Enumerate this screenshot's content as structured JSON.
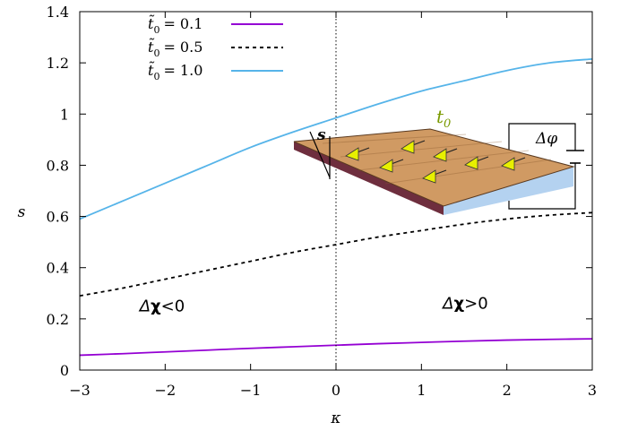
{
  "chart_data": {
    "type": "line",
    "title": "",
    "xlabel": "κ",
    "ylabel": "s",
    "xlim": [
      -3,
      3
    ],
    "ylim": [
      0,
      1.4
    ],
    "xticks": [
      -3,
      -2,
      -1,
      0,
      1,
      2,
      3
    ],
    "xtick_labels": [
      "−3",
      "−2",
      "−1",
      "0",
      "1",
      "2",
      "3"
    ],
    "yticks": [
      0,
      0.2,
      0.4,
      0.6,
      0.8,
      1,
      1.2,
      1.4
    ],
    "ytick_labels": [
      "0",
      "0.2",
      "0.4",
      "0.6",
      "0.8",
      "1",
      "1.2",
      "1.4"
    ],
    "grid": false,
    "legend_position": "top-left",
    "x": [
      -3.0,
      -2.5,
      -2.0,
      -1.5,
      -1.0,
      -0.5,
      0.0,
      0.5,
      1.0,
      1.5,
      2.0,
      2.5,
      3.0
    ],
    "series": [
      {
        "name": "t̃₀ = 0.1",
        "legend_prefix": "t̃",
        "legend_sub": "0",
        "legend_value": "= 0.1",
        "color": "#9400d3",
        "dash": "solid",
        "values": [
          0.058,
          0.064,
          0.071,
          0.078,
          0.085,
          0.091,
          0.097,
          0.103,
          0.108,
          0.113,
          0.117,
          0.12,
          0.122
        ]
      },
      {
        "name": "t̃₀ = 0.5",
        "legend_prefix": "t̃",
        "legend_sub": "0",
        "legend_value": "= 0.5",
        "color": "#000000",
        "dash": "dashed",
        "values": [
          0.29,
          0.32,
          0.355,
          0.39,
          0.425,
          0.46,
          0.49,
          0.52,
          0.545,
          0.57,
          0.59,
          0.605,
          0.615
        ]
      },
      {
        "name": "t̃₀ = 1.0",
        "legend_prefix": "t̃",
        "legend_sub": "0",
        "legend_value": "= 1.0",
        "color": "#56b4e9",
        "dash": "solid",
        "values": [
          0.59,
          0.66,
          0.73,
          0.8,
          0.87,
          0.93,
          0.985,
          1.04,
          1.09,
          1.13,
          1.17,
          1.2,
          1.215
        ]
      }
    ],
    "vertical_line": {
      "x": 0,
      "style": "dotted"
    },
    "annotations": [
      {
        "id": "neg",
        "delta": "Δ",
        "chi": "χ",
        "rest": "<0",
        "x": -2.3,
        "y": 0.25
      },
      {
        "id": "pos",
        "delta": "Δ",
        "chi": "χ",
        "rest": ">0",
        "x": 1.25,
        "y": 0.26
      }
    ]
  },
  "inset": {
    "label_s": "s",
    "label_t": "t",
    "label_t_sub": "0",
    "label_phi": "Δφ",
    "colors": {
      "top_face": "#d09a63",
      "front_face": "#6e2e3e",
      "side_face": "#b4d2f0",
      "arrow_fill": "#e8f000",
      "t_label": "#7a9a00"
    }
  }
}
